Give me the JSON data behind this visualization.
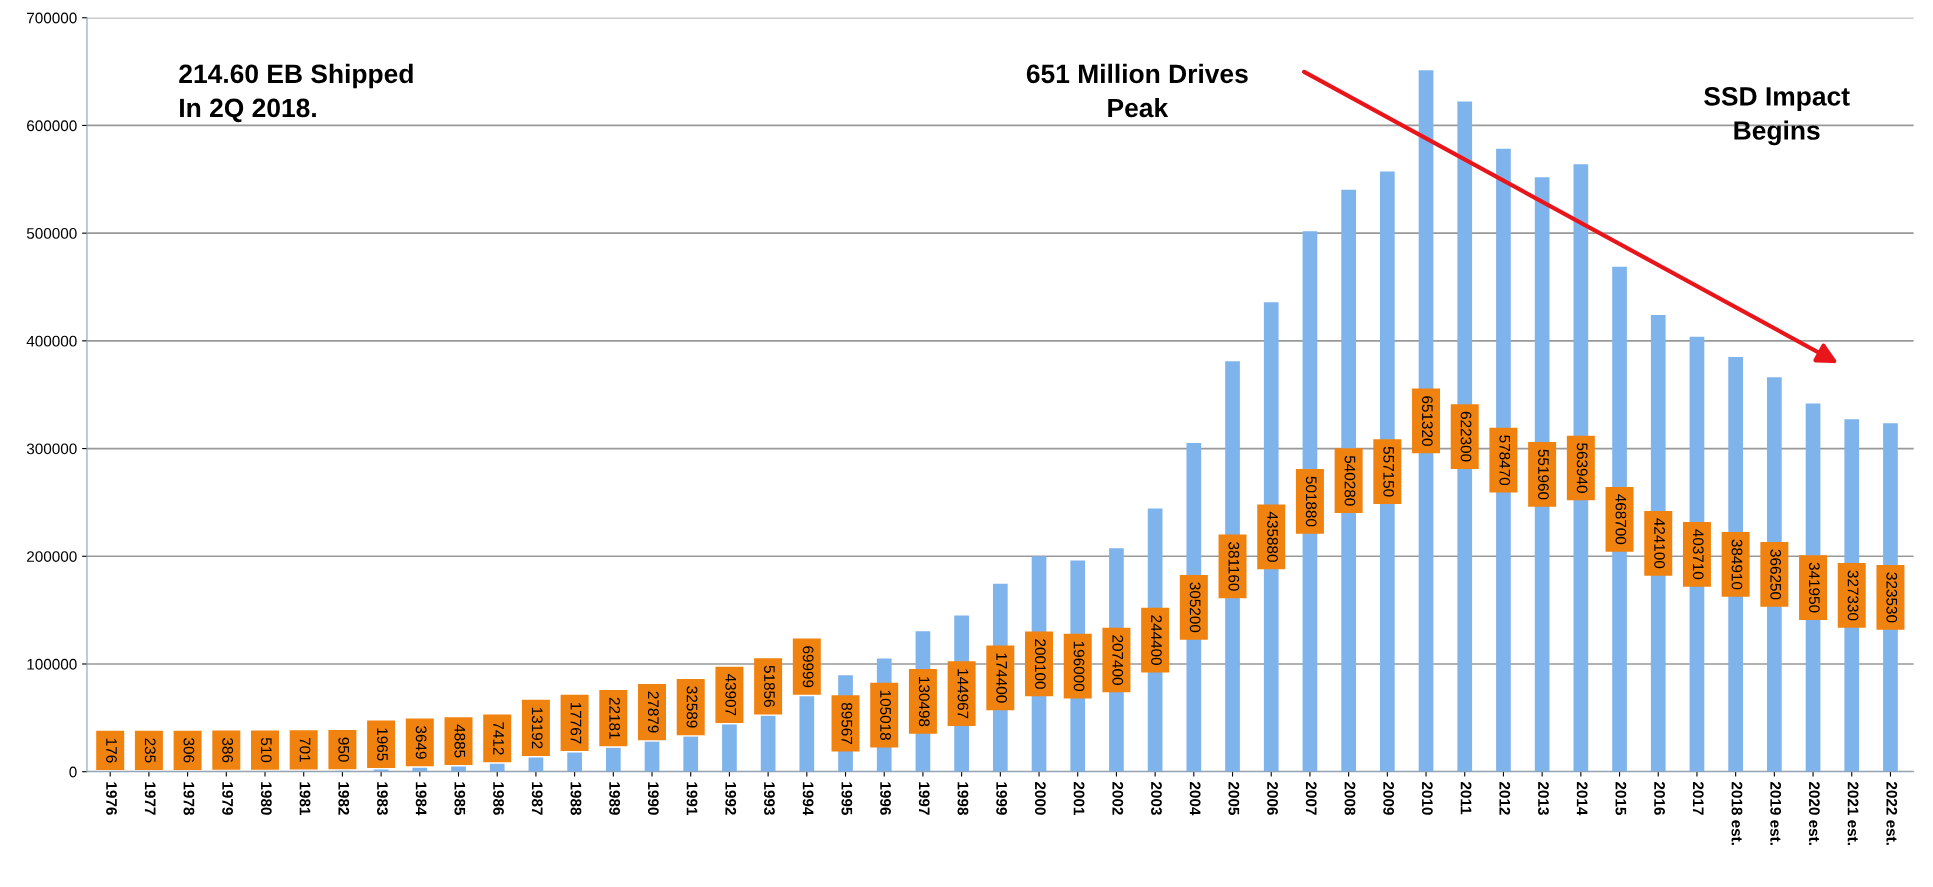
{
  "chart_data": {
    "type": "bar",
    "categories": [
      "1976",
      "1977",
      "1978",
      "1979",
      "1980",
      "1981",
      "1982",
      "1983",
      "1984",
      "1985",
      "1986",
      "1987",
      "1988",
      "1989",
      "1990",
      "1991",
      "1992",
      "1993",
      "1994",
      "1995",
      "1996",
      "1997",
      "1998",
      "1999",
      "2000",
      "2001",
      "2002",
      "2003",
      "2004",
      "2005",
      "2006",
      "2007",
      "2008",
      "2009",
      "2010",
      "2011",
      "2012",
      "2013",
      "2014",
      "2015",
      "2016",
      "2017",
      "2018 est.",
      "2019 est.",
      "2020 est.",
      "2021 est.",
      "2022 est."
    ],
    "values": [
      176,
      235,
      306,
      386,
      510,
      701,
      950,
      1965,
      3649,
      4885,
      7412,
      13192,
      17767,
      22181,
      27879,
      32589,
      43907,
      51856,
      69999,
      89567,
      105018,
      130498,
      144967,
      174400,
      200100,
      196000,
      207400,
      244400,
      305200,
      381160,
      435880,
      501880,
      540280,
      557150,
      651320,
      622300,
      578470,
      551960,
      563940,
      468700,
      424100,
      403710,
      384910,
      366250,
      341950,
      327330,
      323530
    ],
    "color": "#7fb3ec",
    "ylim": [
      0,
      700000
    ],
    "yticks": [
      0,
      100000,
      200000,
      300000,
      400000,
      500000,
      600000,
      700000
    ],
    "grid": "y",
    "data_labels": true,
    "annotations": [
      "214.60 EB Shipped\nIn 2Q 2018.",
      "651 Million Drives\nPeak",
      "SSD Impact\nBegins"
    ]
  }
}
